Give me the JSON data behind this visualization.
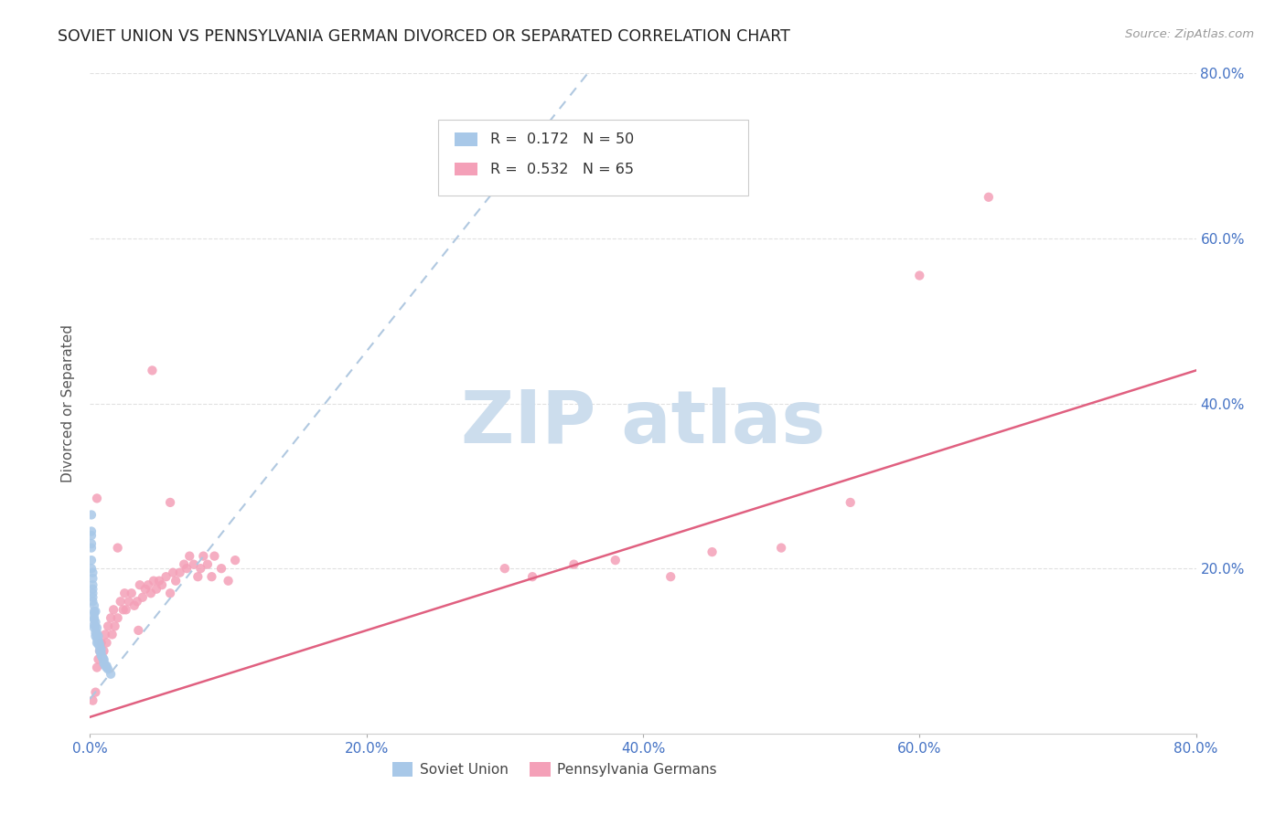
{
  "title": "SOVIET UNION VS PENNSYLVANIA GERMAN DIVORCED OR SEPARATED CORRELATION CHART",
  "source": "Source: ZipAtlas.com",
  "ylabel": "Divorced or Separated",
  "xlim": [
    0.0,
    0.8
  ],
  "ylim": [
    0.0,
    0.8
  ],
  "xtick_labels": [
    "0.0%",
    "20.0%",
    "40.0%",
    "60.0%",
    "80.0%"
  ],
  "xtick_values": [
    0.0,
    0.2,
    0.4,
    0.6,
    0.8
  ],
  "ytick_values": [
    0.2,
    0.4,
    0.6,
    0.8
  ],
  "right_ytick_labels": [
    "20.0%",
    "40.0%",
    "60.0%",
    "80.0%"
  ],
  "legend_blue_label": "R =  0.172   N = 50",
  "legend_pink_label": "R =  0.532   N = 65",
  "legend_foot_blue": "Soviet Union",
  "legend_foot_pink": "Pennsylvania Germans",
  "blue_color": "#a8c8e8",
  "pink_color": "#f4a0b8",
  "blue_line_color": "#b0c8e0",
  "pink_line_color": "#e06080",
  "watermark_color": "#ccdded",
  "blue_scatter_x": [
    0.001,
    0.001,
    0.001,
    0.002,
    0.002,
    0.002,
    0.002,
    0.003,
    0.003,
    0.003,
    0.003,
    0.003,
    0.004,
    0.004,
    0.004,
    0.005,
    0.005,
    0.005,
    0.006,
    0.006,
    0.007,
    0.007,
    0.008,
    0.008,
    0.009,
    0.01,
    0.01,
    0.011,
    0.012,
    0.013,
    0.001,
    0.001,
    0.001,
    0.001,
    0.002,
    0.002,
    0.002,
    0.003,
    0.003,
    0.004,
    0.004,
    0.005,
    0.006,
    0.006,
    0.007,
    0.008,
    0.009,
    0.01,
    0.012,
    0.015
  ],
  "blue_scatter_y": [
    0.265,
    0.245,
    0.225,
    0.195,
    0.18,
    0.17,
    0.16,
    0.148,
    0.14,
    0.138,
    0.132,
    0.128,
    0.13,
    0.122,
    0.118,
    0.122,
    0.115,
    0.11,
    0.112,
    0.108,
    0.105,
    0.1,
    0.102,
    0.095,
    0.092,
    0.09,
    0.085,
    0.082,
    0.08,
    0.078,
    0.24,
    0.23,
    0.21,
    0.2,
    0.188,
    0.175,
    0.165,
    0.155,
    0.145,
    0.148,
    0.135,
    0.128,
    0.118,
    0.112,
    0.108,
    0.098,
    0.092,
    0.088,
    0.082,
    0.072
  ],
  "pink_scatter_x": [
    0.002,
    0.004,
    0.005,
    0.006,
    0.007,
    0.008,
    0.01,
    0.011,
    0.012,
    0.013,
    0.015,
    0.016,
    0.017,
    0.018,
    0.02,
    0.022,
    0.024,
    0.025,
    0.026,
    0.028,
    0.03,
    0.032,
    0.034,
    0.036,
    0.038,
    0.04,
    0.042,
    0.044,
    0.046,
    0.048,
    0.05,
    0.052,
    0.055,
    0.058,
    0.06,
    0.062,
    0.065,
    0.068,
    0.07,
    0.072,
    0.075,
    0.078,
    0.08,
    0.082,
    0.085,
    0.088,
    0.09,
    0.095,
    0.1,
    0.105,
    0.3,
    0.32,
    0.35,
    0.38,
    0.42,
    0.45,
    0.5,
    0.55,
    0.6,
    0.65,
    0.005,
    0.02,
    0.035,
    0.045,
    0.058
  ],
  "pink_scatter_y": [
    0.04,
    0.05,
    0.08,
    0.09,
    0.1,
    0.11,
    0.1,
    0.12,
    0.11,
    0.13,
    0.14,
    0.12,
    0.15,
    0.13,
    0.14,
    0.16,
    0.15,
    0.17,
    0.15,
    0.16,
    0.17,
    0.155,
    0.16,
    0.18,
    0.165,
    0.175,
    0.18,
    0.17,
    0.185,
    0.175,
    0.185,
    0.18,
    0.19,
    0.17,
    0.195,
    0.185,
    0.195,
    0.205,
    0.2,
    0.215,
    0.205,
    0.19,
    0.2,
    0.215,
    0.205,
    0.19,
    0.215,
    0.2,
    0.185,
    0.21,
    0.2,
    0.19,
    0.205,
    0.21,
    0.19,
    0.22,
    0.225,
    0.28,
    0.555,
    0.65,
    0.285,
    0.225,
    0.125,
    0.44,
    0.28
  ],
  "background_color": "#ffffff",
  "grid_color": "#dddddd",
  "title_color": "#222222",
  "axis_label_color": "#555555",
  "tick_label_color": "#4472c4"
}
